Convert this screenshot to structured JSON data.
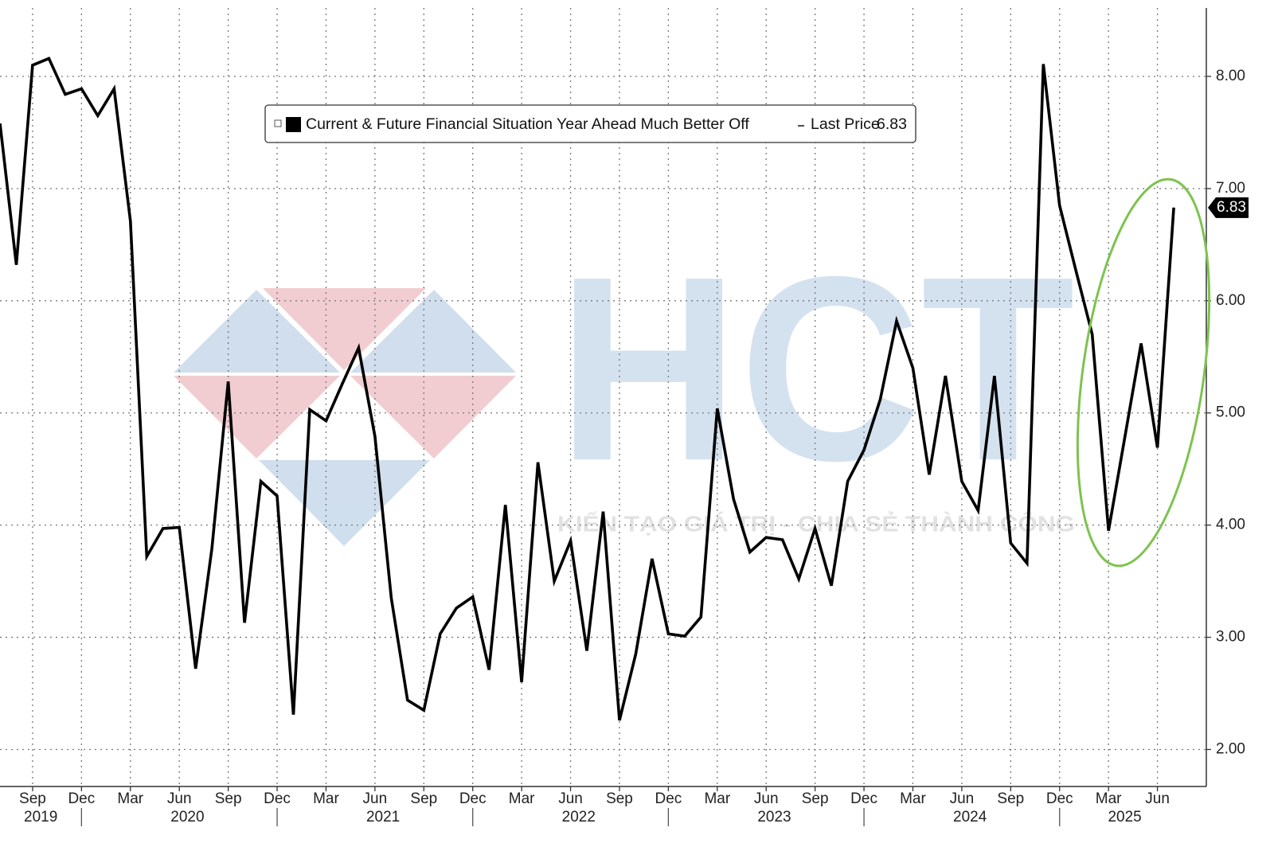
{
  "chart_data": {
    "type": "line",
    "x": [
      "2019-07",
      "2019-08",
      "2019-09",
      "2019-10",
      "2019-11",
      "2019-12",
      "2020-01",
      "2020-02",
      "2020-03",
      "2020-04",
      "2020-05",
      "2020-06",
      "2020-07",
      "2020-08",
      "2020-09",
      "2020-10",
      "2020-11",
      "2020-12",
      "2021-01",
      "2021-02",
      "2021-03",
      "2021-04",
      "2021-05",
      "2021-06",
      "2021-07",
      "2021-08",
      "2021-09",
      "2021-10",
      "2021-11",
      "2021-12",
      "2022-01",
      "2022-02",
      "2022-03",
      "2022-04",
      "2022-05",
      "2022-06",
      "2022-07",
      "2022-08",
      "2022-09",
      "2022-10",
      "2022-11",
      "2022-12",
      "2023-01",
      "2023-02",
      "2023-03",
      "2023-04",
      "2023-05",
      "2023-06",
      "2023-07",
      "2023-08",
      "2023-09",
      "2023-10",
      "2023-11",
      "2023-12",
      "2024-01",
      "2024-02",
      "2024-03",
      "2024-04",
      "2024-05",
      "2024-06",
      "2024-07",
      "2024-08",
      "2024-09",
      "2024-10",
      "2024-11",
      "2024-12",
      "2025-01",
      "2025-02",
      "2025-03",
      "2025-04",
      "2025-05",
      "2025-06",
      "2025-07"
    ],
    "series": [
      {
        "name": "Current & Future Financial Situation Year Ahead Much Better Off",
        "color": "#000000",
        "values": [
          7.58,
          6.32,
          8.1,
          8.16,
          7.84,
          7.89,
          7.65,
          7.89,
          6.71,
          3.72,
          3.97,
          3.98,
          2.72,
          3.79,
          5.28,
          3.13,
          4.39,
          4.26,
          2.31,
          5.03,
          4.93,
          5.26,
          5.58,
          4.79,
          3.35,
          2.44,
          2.35,
          3.03,
          3.26,
          3.36,
          2.71,
          4.18,
          2.6,
          4.56,
          3.5,
          3.86,
          2.88,
          4.12,
          2.26,
          2.85,
          3.7,
          3.03,
          3.01,
          3.18,
          5.04,
          4.23,
          3.76,
          3.89,
          3.87,
          3.52,
          3.97,
          3.46,
          4.39,
          4.67,
          5.12,
          5.82,
          5.4,
          4.45,
          5.33,
          4.39,
          4.13,
          5.33,
          3.84,
          3.66,
          8.11,
          6.85,
          6.27,
          5.7,
          3.95,
          4.78,
          5.62,
          4.69,
          6.83
        ]
      }
    ],
    "last_price_label": "Last Price",
    "last_price": 6.83,
    "xlim": [
      "2019-07",
      "2025-09"
    ],
    "xticks": [
      {
        "value": "2019-09",
        "label": "Sep"
      },
      {
        "value": "2019-12",
        "label": "Dec"
      },
      {
        "value": "2020-03",
        "label": "Mar"
      },
      {
        "value": "2020-06",
        "label": "Jun"
      },
      {
        "value": "2020-09",
        "label": "Sep"
      },
      {
        "value": "2020-12",
        "label": "Dec"
      },
      {
        "value": "2021-03",
        "label": "Mar"
      },
      {
        "value": "2021-06",
        "label": "Jun"
      },
      {
        "value": "2021-09",
        "label": "Sep"
      },
      {
        "value": "2021-12",
        "label": "Dec"
      },
      {
        "value": "2022-03",
        "label": "Mar"
      },
      {
        "value": "2022-06",
        "label": "Jun"
      },
      {
        "value": "2022-09",
        "label": "Sep"
      },
      {
        "value": "2022-12",
        "label": "Dec"
      },
      {
        "value": "2023-03",
        "label": "Mar"
      },
      {
        "value": "2023-06",
        "label": "Jun"
      },
      {
        "value": "2023-09",
        "label": "Sep"
      },
      {
        "value": "2023-12",
        "label": "Dec"
      },
      {
        "value": "2024-03",
        "label": "Mar"
      },
      {
        "value": "2024-06",
        "label": "Jun"
      },
      {
        "value": "2024-09",
        "label": "Sep"
      },
      {
        "value": "2024-12",
        "label": "Dec"
      },
      {
        "value": "2025-03",
        "label": "Mar"
      },
      {
        "value": "2025-06",
        "label": "Jun"
      }
    ],
    "x_year_labels": [
      2019,
      2020,
      2021,
      2022,
      2023,
      2024,
      2025
    ],
    "ylim": [
      1.67,
      8.61
    ],
    "yticks": [
      {
        "value": 2,
        "label": "2.00"
      },
      {
        "value": 3,
        "label": "3.00"
      },
      {
        "value": 4,
        "label": "4.00"
      },
      {
        "value": 5,
        "label": "5.00"
      },
      {
        "value": 6,
        "label": "6.00"
      },
      {
        "value": 7,
        "label": "7.00"
      },
      {
        "value": 8,
        "label": "8.00"
      }
    ],
    "y_axis_side": "right",
    "grid": true,
    "watermark": {
      "brand": "HCT",
      "slogan": "KIẾN TẠO GIÁ TRỊ - CHIA SẺ THÀNH CÔNG"
    }
  }
}
